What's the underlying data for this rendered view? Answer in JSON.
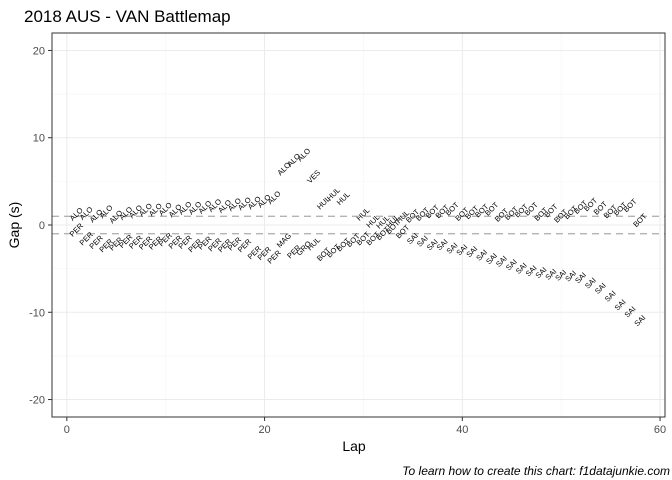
{
  "chart_data": {
    "type": "scatter",
    "title": "2018 AUS - VAN Battlemap",
    "xlabel": "Lap",
    "ylabel": "Gap (s)",
    "caption": "To learn how to create this chart: f1datajunkie.com",
    "xlim": [
      -1.5,
      60.5
    ],
    "ylim": [
      -22,
      22
    ],
    "x_ticks": [
      0,
      20,
      40,
      60
    ],
    "y_ticks": [
      -20,
      -10,
      0,
      10,
      20
    ],
    "grid": true,
    "reference_lines": [
      1,
      -1
    ],
    "labels_rotated_deg": 45,
    "series": [
      {
        "points": [
          {
            "lap": 1,
            "gap": 1.2,
            "label": "ALO"
          },
          {
            "lap": 1,
            "gap": -0.6,
            "label": "PER"
          },
          {
            "lap": 2,
            "gap": 1.3,
            "label": "ALO"
          },
          {
            "lap": 2,
            "gap": -1.6,
            "label": "PER"
          },
          {
            "lap": 3,
            "gap": 1.0,
            "label": "ALO"
          },
          {
            "lap": 3,
            "gap": -2.0,
            "label": "PER"
          },
          {
            "lap": 4,
            "gap": 1.5,
            "label": "ALO"
          },
          {
            "lap": 4,
            "gap": -2.4,
            "label": "PER"
          },
          {
            "lap": 5,
            "gap": 0.9,
            "label": "ALO"
          },
          {
            "lap": 5,
            "gap": -2.2,
            "label": "PER"
          },
          {
            "lap": 6,
            "gap": 1.3,
            "label": "ALO"
          },
          {
            "lap": 6,
            "gap": -1.9,
            "label": "PER"
          },
          {
            "lap": 7,
            "gap": 1.5,
            "label": "ALO"
          },
          {
            "lap": 7,
            "gap": -2.0,
            "label": "PER"
          },
          {
            "lap": 8,
            "gap": 1.7,
            "label": "ALO"
          },
          {
            "lap": 8,
            "gap": -2.1,
            "label": "PER"
          },
          {
            "lap": 9,
            "gap": 1.7,
            "label": "ALO"
          },
          {
            "lap": 9,
            "gap": -2.1,
            "label": "PER"
          },
          {
            "lap": 10,
            "gap": 1.8,
            "label": "ALO"
          },
          {
            "lap": 10,
            "gap": -1.7,
            "label": "PER"
          },
          {
            "lap": 11,
            "gap": 1.6,
            "label": "ALO"
          },
          {
            "lap": 11,
            "gap": -2.0,
            "label": "PER"
          },
          {
            "lap": 12,
            "gap": 1.9,
            "label": "ALO"
          },
          {
            "lap": 12,
            "gap": -2.0,
            "label": "PER"
          },
          {
            "lap": 13,
            "gap": 1.9,
            "label": "ALO"
          },
          {
            "lap": 13,
            "gap": -2.4,
            "label": "PER"
          },
          {
            "lap": 14,
            "gap": 2.0,
            "label": "ALO"
          },
          {
            "lap": 14,
            "gap": -2.1,
            "label": "PER"
          },
          {
            "lap": 15,
            "gap": 2.2,
            "label": "ALO"
          },
          {
            "lap": 15,
            "gap": -2.3,
            "label": "PER"
          },
          {
            "lap": 16,
            "gap": 2.1,
            "label": "ALO"
          },
          {
            "lap": 16,
            "gap": -2.4,
            "label": "PER"
          },
          {
            "lap": 17,
            "gap": 2.3,
            "label": "ALO"
          },
          {
            "lap": 17,
            "gap": -2.2,
            "label": "PER"
          },
          {
            "lap": 18,
            "gap": 2.4,
            "label": "ALO"
          },
          {
            "lap": 18,
            "gap": -2.4,
            "label": "PER"
          },
          {
            "lap": 19,
            "gap": 2.5,
            "label": "ALO"
          },
          {
            "lap": 19,
            "gap": -3.2,
            "label": "PER"
          },
          {
            "lap": 20,
            "gap": 2.7,
            "label": "ALO"
          },
          {
            "lap": 20,
            "gap": -3.3,
            "label": "PER"
          },
          {
            "lap": 21,
            "gap": 3.1,
            "label": "ALO"
          },
          {
            "lap": 21,
            "gap": -3.7,
            "label": "PER"
          },
          {
            "lap": 22,
            "gap": 6.4,
            "label": "ALO"
          },
          {
            "lap": 22,
            "gap": -1.8,
            "label": "MAG"
          },
          {
            "lap": 23,
            "gap": 7.4,
            "label": "ALO"
          },
          {
            "lap": 23,
            "gap": -3.1,
            "label": "PER"
          },
          {
            "lap": 24,
            "gap": 8.0,
            "label": "ALO"
          },
          {
            "lap": 24,
            "gap": -2.7,
            "label": "GRO"
          },
          {
            "lap": 25,
            "gap": 5.5,
            "label": "VES"
          },
          {
            "lap": 25,
            "gap": -2.2,
            "label": "HUL"
          },
          {
            "lap": 26,
            "gap": 2.5,
            "label": "HUL"
          },
          {
            "lap": 26,
            "gap": -3.4,
            "label": "BOT"
          },
          {
            "lap": 27,
            "gap": 3.5,
            "label": "HUL"
          },
          {
            "lap": 27,
            "gap": -3.0,
            "label": "BOT"
          },
          {
            "lap": 28,
            "gap": 3.0,
            "label": "HUL"
          },
          {
            "lap": 28,
            "gap": -2.3,
            "label": "BOT"
          },
          {
            "lap": 29,
            "gap": -1.8,
            "label": "BOT"
          },
          {
            "lap": 30,
            "gap": 1.2,
            "label": "HUL"
          },
          {
            "lap": 30,
            "gap": -1.6,
            "label": "BOT"
          },
          {
            "lap": 31,
            "gap": 0.4,
            "label": "HUL"
          },
          {
            "lap": 31,
            "gap": -1.6,
            "label": "BOT"
          },
          {
            "lap": 32,
            "gap": 0.3,
            "label": "HUL"
          },
          {
            "lap": 32,
            "gap": -1.0,
            "label": "BOT"
          },
          {
            "lap": 33,
            "gap": 0.4,
            "label": "HUL"
          },
          {
            "lap": 33,
            "gap": -0.3,
            "label": "BOT"
          },
          {
            "lap": 34,
            "gap": 0.9,
            "label": "HUL"
          },
          {
            "lap": 34,
            "gap": -0.8,
            "label": "BOT"
          },
          {
            "lap": 35,
            "gap": 1.0,
            "label": "BOT"
          },
          {
            "lap": 35,
            "gap": -1.6,
            "label": "SAI"
          },
          {
            "lap": 36,
            "gap": 1.2,
            "label": "BOT"
          },
          {
            "lap": 36,
            "gap": -1.9,
            "label": "SAI"
          },
          {
            "lap": 37,
            "gap": 1.5,
            "label": "BOT"
          },
          {
            "lap": 37,
            "gap": -2.3,
            "label": "SAI"
          },
          {
            "lap": 38,
            "gap": 1.5,
            "label": "BOT"
          },
          {
            "lap": 38,
            "gap": -2.3,
            "label": "SAI"
          },
          {
            "lap": 39,
            "gap": 1.8,
            "label": "BOT"
          },
          {
            "lap": 39,
            "gap": -2.7,
            "label": "SAI"
          },
          {
            "lap": 40,
            "gap": 1.2,
            "label": "BOT"
          },
          {
            "lap": 40,
            "gap": -2.9,
            "label": "SAI"
          },
          {
            "lap": 41,
            "gap": 1.4,
            "label": "BOT"
          },
          {
            "lap": 41,
            "gap": -3.1,
            "label": "SAI"
          },
          {
            "lap": 42,
            "gap": 1.6,
            "label": "BOT"
          },
          {
            "lap": 42,
            "gap": -3.5,
            "label": "SAI"
          },
          {
            "lap": 43,
            "gap": 1.8,
            "label": "BOT"
          },
          {
            "lap": 43,
            "gap": -3.9,
            "label": "SAI"
          },
          {
            "lap": 44,
            "gap": 1.1,
            "label": "BOT"
          },
          {
            "lap": 44,
            "gap": -4.2,
            "label": "SAI"
          },
          {
            "lap": 45,
            "gap": 1.3,
            "label": "BOT"
          },
          {
            "lap": 45,
            "gap": -4.6,
            "label": "SAI"
          },
          {
            "lap": 46,
            "gap": 1.6,
            "label": "BOT"
          },
          {
            "lap": 46,
            "gap": -5.0,
            "label": "SAI"
          },
          {
            "lap": 47,
            "gap": 1.8,
            "label": "BOT"
          },
          {
            "lap": 47,
            "gap": -5.3,
            "label": "SAI"
          },
          {
            "lap": 48,
            "gap": 1.2,
            "label": "BOT"
          },
          {
            "lap": 48,
            "gap": -5.5,
            "label": "SAI"
          },
          {
            "lap": 49,
            "gap": 1.6,
            "label": "BOT"
          },
          {
            "lap": 49,
            "gap": -5.7,
            "label": "SAI"
          },
          {
            "lap": 50,
            "gap": 1.0,
            "label": "BOT"
          },
          {
            "lap": 50,
            "gap": -5.8,
            "label": "SAI"
          },
          {
            "lap": 51,
            "gap": 1.4,
            "label": "BOT"
          },
          {
            "lap": 51,
            "gap": -5.9,
            "label": "SAI"
          },
          {
            "lap": 52,
            "gap": 2.0,
            "label": "BOT"
          },
          {
            "lap": 52,
            "gap": -6.1,
            "label": "SAI"
          },
          {
            "lap": 53,
            "gap": 2.3,
            "label": "BOT"
          },
          {
            "lap": 53,
            "gap": -6.7,
            "label": "SAI"
          },
          {
            "lap": 54,
            "gap": 1.9,
            "label": "BOT"
          },
          {
            "lap": 54,
            "gap": -7.3,
            "label": "SAI"
          },
          {
            "lap": 55,
            "gap": 1.5,
            "label": "BOT"
          },
          {
            "lap": 55,
            "gap": -8.2,
            "label": "SAI"
          },
          {
            "lap": 56,
            "gap": 1.8,
            "label": "BOT"
          },
          {
            "lap": 56,
            "gap": -9.2,
            "label": "SAI"
          },
          {
            "lap": 57,
            "gap": 2.2,
            "label": "BOT"
          },
          {
            "lap": 57,
            "gap": -10.0,
            "label": "SAI"
          },
          {
            "lap": 58,
            "gap": 0.5,
            "label": "BOT"
          },
          {
            "lap": 58,
            "gap": -11.0,
            "label": "SAI"
          }
        ]
      }
    ]
  },
  "style": {
    "panel_bg": "#ffffff",
    "panel_border": "#333333",
    "grid_major": "#ebebeb",
    "grid_minor": "#f5f5f5",
    "reference_line": "#b3b3b3",
    "text": "#000000",
    "tick_text": "#4d4d4d"
  }
}
